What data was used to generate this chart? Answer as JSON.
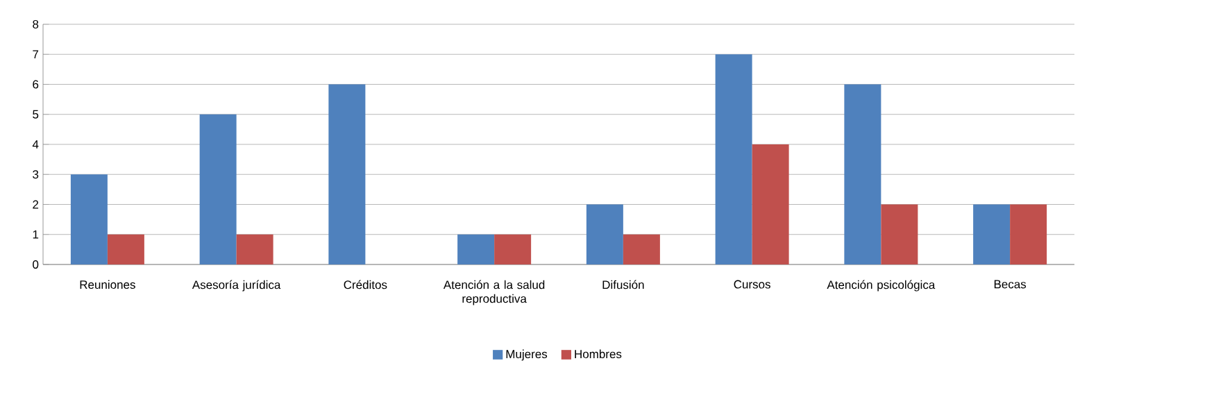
{
  "chart_data": {
    "type": "bar",
    "categories": [
      "Reuniones",
      "Asesoría jurídica",
      "Créditos",
      "Atención a la salud reproductiva",
      "Difusión",
      "Cursos",
      "Atención psicológica",
      "Becas"
    ],
    "series": [
      {
        "name": "Mujeres",
        "color": "#4f81bd",
        "values": [
          3,
          5,
          6,
          1,
          2,
          7,
          6,
          2
        ]
      },
      {
        "name": "Hombres",
        "color": "#c0504d",
        "values": [
          1,
          1,
          0,
          1,
          1,
          4,
          2,
          2
        ]
      }
    ],
    "ylim": [
      0,
      8
    ],
    "yticks": [
      0,
      1,
      2,
      3,
      4,
      5,
      6,
      7,
      8
    ],
    "grid": "y",
    "legend": "bottom"
  }
}
